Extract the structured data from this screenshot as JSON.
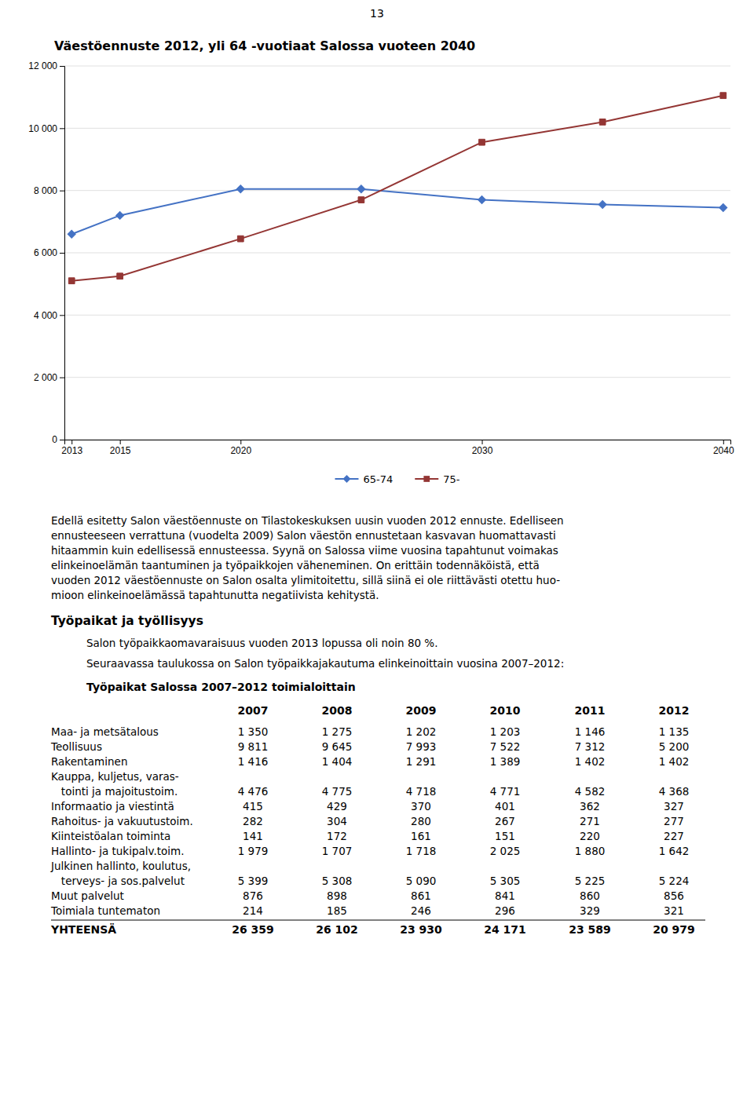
{
  "page_number": "13",
  "chart_data": {
    "type": "line",
    "title": "Väestöennuste 2012, yli 64 -vuotiaat Salossa vuoteen 2040",
    "x": [
      2013,
      2015,
      2020,
      2025,
      2030,
      2035,
      2040
    ],
    "series": [
      {
        "name": "65-74",
        "color": "#4472C4",
        "marker": "diamond",
        "values": [
          6600,
          7200,
          8050,
          8050,
          7700,
          7550,
          7450
        ]
      },
      {
        "name": "75-",
        "color": "#943634",
        "marker": "square",
        "values": [
          5100,
          5250,
          6450,
          7700,
          9550,
          10200,
          11050
        ]
      }
    ],
    "xlim": [
      2012.7,
      2040.3
    ],
    "xticks": [
      2013,
      2015,
      2020,
      2030,
      2040
    ],
    "ylim": [
      0,
      12000
    ],
    "yticks": [
      0,
      {
        "value": 2000,
        "label": "2 000"
      },
      {
        "value": 4000,
        "label": "4 000"
      },
      {
        "value": 6000,
        "label": "6 000"
      },
      {
        "value": 8000,
        "label": "8 000"
      },
      {
        "value": 10000,
        "label": "10 000"
      },
      {
        "value": 12000,
        "label": "12 000"
      }
    ],
    "grid": true,
    "legend": "bottom"
  },
  "text": {
    "paragraph1_lines": [
      "Edellä esitetty Salon väestöennuste on Tilastokeskuksen uusin vuoden 2012 ennuste. Edelliseen",
      "ennusteeseen verrattuna (vuodelta 2009) Salon väestön ennustetaan kasvavan huomattavasti",
      "hitaammin kuin edellisessä ennusteessa. Syynä on Salossa viime vuosina tapahtunut voimakas",
      "elinkeinoelämän taantuminen ja työpaikkojen väheneminen. On erittäin todennäköistä, että",
      "vuoden 2012 väestöennuste on Salon osalta ylimitoitettu, sillä siinä ei ole riittävästi otettu huo-",
      "mioon elinkeinoelämässä tapahtunutta negatiivista kehitystä."
    ],
    "section_title": "Työpaikat ja työllisyys",
    "para2": "Salon työpaikkaomavaraisuus vuoden 2013 lopussa oli noin 80 %.",
    "para3": "Seuraavassa taulukossa on Salon työpaikkajakautuma elinkeinoittain vuosina 2007–2012:"
  },
  "table": {
    "title": "Työpaikat Salossa 2007–2012 toimialoittain",
    "columns": [
      "2007",
      "2008",
      "2009",
      "2010",
      "2011",
      "2012"
    ],
    "rows": [
      {
        "label": "Maa- ja metsätalous",
        "values": [
          1350,
          1275,
          1202,
          1203,
          1146,
          1135
        ],
        "value_labels": [
          "1 350",
          "1 275",
          "1 202",
          "1 203",
          "1 146",
          "1 135"
        ]
      },
      {
        "label": "Teollisuus",
        "values": [
          9811,
          9645,
          7993,
          7522,
          7312,
          5200
        ],
        "value_labels": [
          "9 811",
          "9 645",
          "7 993",
          "7 522",
          "7 312",
          "5 200"
        ]
      },
      {
        "label": "Rakentaminen",
        "values": [
          1416,
          1404,
          1291,
          1389,
          1402,
          1402
        ],
        "value_labels": [
          "1 416",
          "1 404",
          "1 291",
          "1 389",
          "1 402",
          "1 402"
        ]
      },
      {
        "label": "Kauppa, kuljetus, varas-"
      },
      {
        "label": "   tointi ja majoitustoim.",
        "values": [
          4476,
          4775,
          4718,
          4771,
          4582,
          4368
        ],
        "value_labels": [
          "4 476",
          "4 775",
          "4 718",
          "4 771",
          "4 582",
          "4 368"
        ]
      },
      {
        "label": "Informaatio ja viestintä",
        "values": [
          415,
          429,
          370,
          401,
          362,
          327
        ],
        "value_labels": [
          "415",
          "429",
          "370",
          "401",
          "362",
          "327"
        ]
      },
      {
        "label": "Rahoitus- ja vakuutustoim.",
        "values": [
          282,
          304,
          280,
          267,
          271,
          277
        ],
        "value_labels": [
          "282",
          "304",
          "280",
          "267",
          "271",
          "277"
        ]
      },
      {
        "label": "Kiinteistöalan toiminta",
        "values": [
          141,
          172,
          161,
          151,
          220,
          227
        ],
        "value_labels": [
          "141",
          "172",
          "161",
          "151",
          "220",
          "227"
        ]
      },
      {
        "label": "Hallinto- ja tukipalv.toim.",
        "values": [
          1979,
          1707,
          1718,
          2025,
          1880,
          1642
        ],
        "value_labels": [
          "1 979",
          "1 707",
          "1 718",
          "2 025",
          "1 880",
          "1 642"
        ]
      },
      {
        "label": "Julkinen hallinto, koulutus,"
      },
      {
        "label": "   terveys- ja sos.palvelut",
        "values": [
          5399,
          5308,
          5090,
          5305,
          5225,
          5224
        ],
        "value_labels": [
          "5 399",
          "5 308",
          "5 090",
          "5 305",
          "5 225",
          "5 224"
        ]
      },
      {
        "label": "Muut palvelut",
        "values": [
          876,
          898,
          861,
          841,
          860,
          856
        ],
        "value_labels": [
          "876",
          "898",
          "861",
          "841",
          "860",
          "856"
        ]
      },
      {
        "label": "Toimiala tuntematon",
        "values": [
          214,
          185,
          246,
          296,
          329,
          321
        ],
        "value_labels": [
          "214",
          "185",
          "246",
          "296",
          "329",
          "321"
        ]
      }
    ],
    "total": {
      "label": "YHTEENSÄ",
      "values": [
        26359,
        26102,
        23930,
        24171,
        23589,
        20979
      ],
      "value_labels": [
        "26 359",
        "26 102",
        "23 930",
        "24 171",
        "23 589",
        "20 979"
      ]
    }
  }
}
